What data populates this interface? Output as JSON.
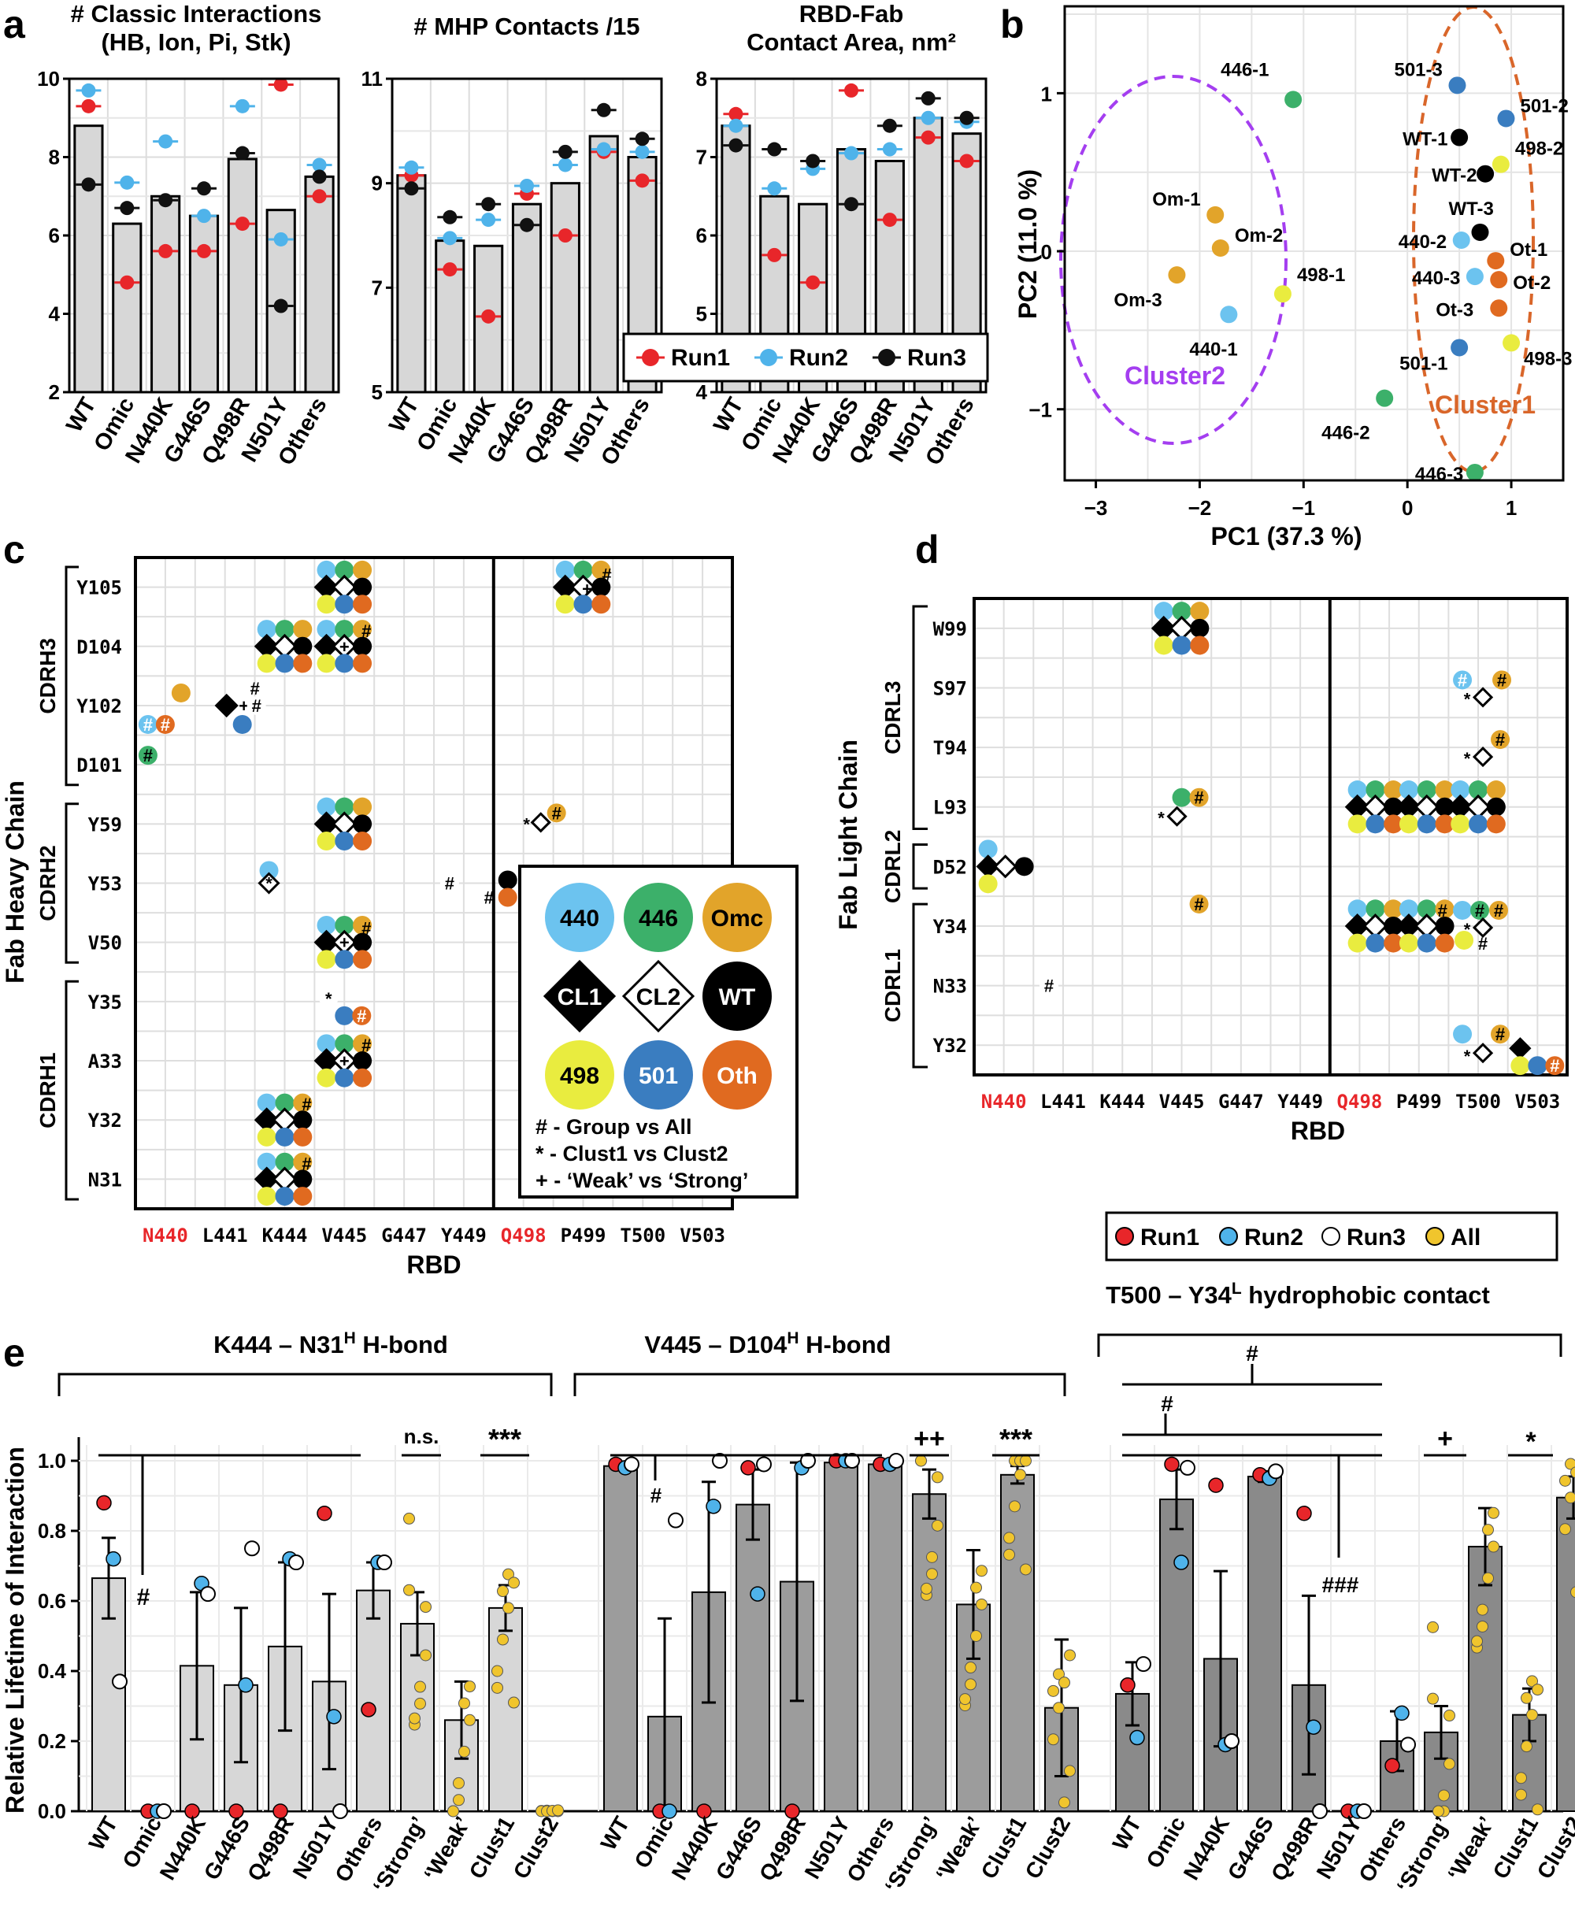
{
  "panels": {
    "a": "a",
    "b": "b",
    "c": "c",
    "d": "d",
    "e": "e"
  },
  "colors": {
    "run1": "#e8262a",
    "run2": "#4fb3ea",
    "run3": "#111111",
    "all": "#f0c52d",
    "bar": "#d7d7d7",
    "bar_dark": "#9c9c9c",
    "g440": "#6cc3ef",
    "g446": "#3cb06a",
    "omc": "#e2a42a",
    "g498": "#e9ec3f",
    "g501": "#3a7dc0",
    "oth": "#e06a20",
    "cluster1": "#d9662a",
    "cluster2": "#a43ef0"
  },
  "legend_runs": {
    "run1": "Run1",
    "run2": "Run2",
    "run3": "Run3",
    "all": "All"
  },
  "chart_data": [
    {
      "id": "a1",
      "type": "bar",
      "title": "# Classic Interactions (HB, Ion, Pi, Stk)",
      "title_lines": [
        "# Classic Interactions",
        "(HB, Ion, Pi, Stk)"
      ],
      "categories": [
        "WT",
        "Omic",
        "N440K",
        "G446S",
        "Q498R",
        "N501Y",
        "Others"
      ],
      "ylim": [
        2,
        10
      ],
      "yticks": [
        "2",
        "4",
        "6",
        "8",
        "10"
      ],
      "bar_values": [
        8.8,
        6.3,
        7.0,
        6.5,
        7.95,
        6.65,
        7.5
      ],
      "series": [
        {
          "name": "Run1",
          "values": [
            9.3,
            4.8,
            5.6,
            5.6,
            6.3,
            9.85,
            7.0
          ]
        },
        {
          "name": "Run2",
          "values": [
            9.7,
            7.35,
            8.4,
            6.5,
            9.3,
            5.9,
            7.8
          ]
        },
        {
          "name": "Run3",
          "values": [
            7.3,
            6.7,
            6.9,
            7.2,
            8.1,
            4.2,
            7.5
          ]
        }
      ]
    },
    {
      "id": "a2",
      "type": "bar",
      "title": "# MHP Contacts /15",
      "title_lines": [
        "# MHP Contacts /15"
      ],
      "categories": [
        "WT",
        "Omic",
        "N440K",
        "G446S",
        "Q498R",
        "N501Y",
        "Others"
      ],
      "ylim": [
        5,
        11
      ],
      "yticks": [
        "5",
        "7",
        "9",
        "11"
      ],
      "bar_values": [
        9.15,
        7.9,
        7.8,
        8.6,
        9.0,
        9.9,
        9.5
      ],
      "series": [
        {
          "name": "Run1",
          "values": [
            9.15,
            7.35,
            6.45,
            8.8,
            8.0,
            9.6,
            9.05
          ]
        },
        {
          "name": "Run2",
          "values": [
            9.3,
            7.95,
            8.3,
            8.95,
            9.35,
            9.65,
            9.6
          ]
        },
        {
          "name": "Run3",
          "values": [
            8.9,
            8.35,
            8.6,
            8.2,
            9.6,
            10.4,
            9.85
          ]
        }
      ]
    },
    {
      "id": "a3",
      "type": "bar",
      "title": "RBD-Fab Contact Area, nm²",
      "title_lines": [
        "RBD-Fab",
        "Contact Area, nm²"
      ],
      "categories": [
        "WT",
        "Omic",
        "N440K",
        "G446S",
        "Q498R",
        "N501Y",
        "Others"
      ],
      "ylim": [
        4,
        8
      ],
      "yticks": [
        "4",
        "5",
        "6",
        "7",
        "8"
      ],
      "bar_values": [
        7.4,
        6.5,
        6.4,
        7.1,
        6.95,
        7.5,
        7.3
      ],
      "series": [
        {
          "name": "Run1",
          "values": [
            7.55,
            5.75,
            5.4,
            7.85,
            6.2,
            7.25,
            6.95
          ]
        },
        {
          "name": "Run2",
          "values": [
            7.4,
            6.6,
            6.85,
            7.05,
            7.1,
            7.5,
            7.45
          ]
        },
        {
          "name": "Run3",
          "values": [
            7.15,
            7.1,
            6.95,
            6.4,
            7.4,
            7.75,
            7.5
          ]
        }
      ],
      "legend": [
        "Run1",
        "Run2",
        "Run3"
      ]
    },
    {
      "id": "b",
      "type": "scatter",
      "xlabel": "PC1 (37.3 %)",
      "ylabel": "PC2 (11.0 %)",
      "xlim": [
        -3.3,
        1.5
      ],
      "ylim": [
        -1.45,
        1.55
      ],
      "xticks": [
        "−3",
        "−2",
        "−1",
        "0",
        "1"
      ],
      "yticks": [
        "−1",
        "0",
        "1"
      ],
      "cluster_labels": [
        "Cluster1",
        "Cluster2"
      ],
      "points": [
        {
          "label": "446-1",
          "x": -1.1,
          "y": 0.96,
          "group": "g446"
        },
        {
          "label": "Om-1",
          "x": -1.85,
          "y": 0.23,
          "group": "omc"
        },
        {
          "label": "Om-2",
          "x": -1.8,
          "y": 0.02,
          "group": "omc"
        },
        {
          "label": "Om-3",
          "x": -2.22,
          "y": -0.15,
          "group": "omc"
        },
        {
          "label": "498-1",
          "x": -1.2,
          "y": -0.27,
          "group": "g498"
        },
        {
          "label": "440-1",
          "x": -1.72,
          "y": -0.4,
          "group": "g440"
        },
        {
          "label": "446-2",
          "x": -0.22,
          "y": -0.93,
          "group": "g446"
        },
        {
          "label": "501-3",
          "x": 0.48,
          "y": 1.05,
          "group": "g501"
        },
        {
          "label": "501-2",
          "x": 0.95,
          "y": 0.84,
          "group": "g501"
        },
        {
          "label": "WT-1",
          "x": 0.5,
          "y": 0.72,
          "group": "wt"
        },
        {
          "label": "498-2",
          "x": 0.9,
          "y": 0.55,
          "group": "g498"
        },
        {
          "label": "WT-2",
          "x": 0.75,
          "y": 0.49,
          "group": "wt"
        },
        {
          "label": "WT-3",
          "x": 0.7,
          "y": 0.12,
          "group": "wt"
        },
        {
          "label": "440-2",
          "x": 0.52,
          "y": 0.07,
          "group": "g440"
        },
        {
          "label": "Ot-1",
          "x": 0.85,
          "y": -0.06,
          "group": "oth"
        },
        {
          "label": "440-3",
          "x": 0.65,
          "y": -0.16,
          "group": "g440"
        },
        {
          "label": "Ot-2",
          "x": 0.88,
          "y": -0.18,
          "group": "oth"
        },
        {
          "label": "Ot-3",
          "x": 0.88,
          "y": -0.36,
          "group": "oth"
        },
        {
          "label": "498-3",
          "x": 1.0,
          "y": -0.58,
          "group": "g498"
        },
        {
          "label": "501-1",
          "x": 0.5,
          "y": -0.61,
          "group": "g501"
        },
        {
          "label": "446-3",
          "x": 0.65,
          "y": -1.4,
          "group": "g446"
        }
      ]
    },
    {
      "id": "c",
      "type": "table",
      "xlabel": "RBD",
      "ylabel": "Fab Heavy Chain",
      "columns": [
        "N440",
        "L441",
        "K444",
        "V445",
        "G447",
        "Y449",
        "Q498",
        "P499",
        "T500",
        "V503"
      ],
      "rows": [
        "Y105",
        "D104",
        "Y102",
        "D101",
        "Y59",
        "Y53",
        "V50",
        "Y35",
        "A33",
        "Y32",
        "N31"
      ],
      "regions": [
        "CDRH3",
        "CDRH2",
        "CDRH1"
      ],
      "legend_groups": [
        "440",
        "446",
        "Omc",
        "CL1",
        "CL2",
        "WT",
        "498",
        "501",
        "Oth"
      ],
      "legend_notes": [
        "# - Group vs All",
        "* - Clust1 vs Clust2",
        "+ - ‘Weak’ vs ‘Strong’"
      ]
    },
    {
      "id": "d",
      "type": "table",
      "xlabel": "RBD",
      "ylabel": "Fab Light Chain",
      "columns": [
        "N440",
        "L441",
        "K444",
        "V445",
        "G447",
        "Y449",
        "Q498",
        "P499",
        "T500",
        "V503"
      ],
      "rows": [
        "W99",
        "S97",
        "T94",
        "L93",
        "D52",
        "Y34",
        "N33",
        "Y32"
      ],
      "regions": [
        "CDRL3",
        "CDRL2",
        "CDRL1"
      ]
    },
    {
      "id": "e",
      "type": "bar",
      "ylabel": "Relative Lifetime of Interaction",
      "ylim": [
        0,
        1
      ],
      "yticks": [
        "0.0",
        "0.2",
        "0.4",
        "0.6",
        "0.8",
        "1.0"
      ],
      "groups": [
        {
          "title": "K444 – N31H H-bond",
          "title_main": "K444 – N31",
          "title_sup": "H",
          "title_tail": " H-bond",
          "categories": [
            "WT",
            "Omic",
            "N440K",
            "G446S",
            "Q498R",
            "N501Y",
            "Others",
            "‘Strong’",
            "‘Weak’",
            "Clust1",
            "Clust2"
          ],
          "values": [
            0.665,
            0.0,
            0.415,
            0.36,
            0.47,
            0.37,
            0.63,
            0.535,
            0.26,
            0.58,
            0.0
          ],
          "errors": [
            0.115,
            0,
            0.21,
            0.22,
            0.24,
            0.25,
            0.08,
            0.09,
            0.11,
            0.065,
            0
          ],
          "run1": [
            0.88,
            0.0,
            0.0,
            0.0,
            0.0,
            0.85,
            0.29
          ],
          "run2": [
            0.72,
            0.0,
            0.65,
            0.36,
            0.72,
            0.27,
            0.71
          ],
          "run3": [
            0.37,
            0.0,
            0.62,
            0.75,
            0.71,
            0.0,
            0.71
          ],
          "annotations": [
            "#",
            "n.s.",
            "***"
          ]
        },
        {
          "title": "V445 – D104H H-bond",
          "title_main": "V445 – D104",
          "title_sup": "H",
          "title_tail": " H-bond",
          "categories": [
            "WT",
            "Omic",
            "N440K",
            "G446S",
            "Q498R",
            "N501Y",
            "Others",
            "‘Strong’",
            "‘Weak’",
            "Clust1",
            "Clust2"
          ],
          "values": [
            0.985,
            0.27,
            0.625,
            0.875,
            0.655,
            0.995,
            0.99,
            0.905,
            0.59,
            0.96,
            0.295
          ],
          "errors": [
            0.01,
            0.28,
            0.315,
            0.1,
            0.34,
            0.005,
            0.01,
            0.07,
            0.155,
            0.025,
            0.195
          ],
          "run1": [
            0.99,
            0.0,
            0.0,
            0.98,
            0.0,
            1.0,
            0.99
          ],
          "run2": [
            0.98,
            0.0,
            0.87,
            0.62,
            0.98,
            1.0,
            0.99
          ],
          "run3": [
            0.99,
            0.83,
            1.0,
            0.99,
            1.0,
            1.0,
            1.0
          ],
          "annotations": [
            "#",
            "++",
            "***"
          ]
        },
        {
          "title": "T500 – Y34L hydrophobic contact",
          "title_main": "T500 – Y34",
          "title_sup": "L",
          "title_tail": " hydrophobic contact",
          "categories": [
            "WT",
            "Omic",
            "N440K",
            "G446S",
            "Q498R",
            "N501Y",
            "Others",
            "‘Strong’",
            "‘Weak’",
            "Clust1",
            "Clust2"
          ],
          "values": [
            0.335,
            0.89,
            0.435,
            0.955,
            0.36,
            0.0,
            0.2,
            0.225,
            0.755,
            0.275,
            0.895
          ],
          "errors": [
            0.09,
            0.085,
            0.25,
            0.015,
            0.255,
            0,
            0.085,
            0.075,
            0.11,
            0.075,
            0.06
          ],
          "run1": [
            0.36,
            0.99,
            0.93,
            0.96,
            0.85,
            0.0,
            0.13
          ],
          "run2": [
            0.21,
            0.71,
            0.19,
            0.95,
            0.24,
            0.0,
            0.28
          ],
          "run3": [
            0.42,
            0.98,
            0.2,
            0.97,
            0.0,
            0.0,
            0.19
          ],
          "annotations": [
            "#",
            "#",
            "###",
            "+",
            "*"
          ]
        }
      ]
    }
  ]
}
